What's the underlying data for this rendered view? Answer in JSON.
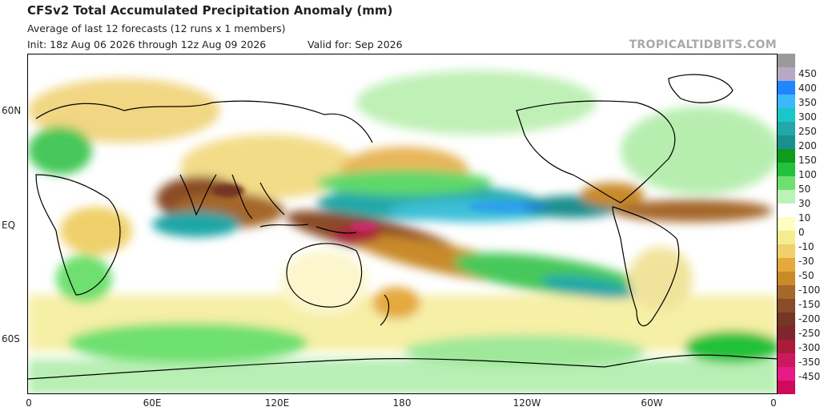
{
  "header": {
    "title": "CFSv2 Total Accumulated Precipitation Anomaly (mm)",
    "subtitle": "Average of last 12 forecasts (12 runs x 1 members)",
    "init": "Init: 18z Aug 06 2026 through 12z Aug 09 2026",
    "valid": "Valid for: Sep 2026",
    "brand": "TROPICALTIDBITS.COM"
  },
  "map": {
    "lat_labels": [
      "60N",
      "EQ",
      "60S"
    ],
    "lon_labels": [
      "0",
      "60E",
      "120E",
      "180",
      "120W",
      "60W",
      "0"
    ]
  },
  "colorbar": {
    "colors": [
      "#9a9a9a",
      "#b8a8c6",
      "#1f86ff",
      "#3cb8ff",
      "#18c8c8",
      "#22a8a8",
      "#1a8f8f",
      "#0f9a20",
      "#24c13b",
      "#6ee06f",
      "#baf2b8",
      "#ffffff",
      "#fffdc0",
      "#f4ec8e",
      "#f0d06a",
      "#e5a93c",
      "#c98a2a",
      "#a5672a",
      "#8a4b28",
      "#753624",
      "#80252b",
      "#a81d3a",
      "#cc1860",
      "#e81a88",
      "#d00a5a"
    ],
    "labels": [
      "450",
      "400",
      "350",
      "300",
      "250",
      "200",
      "150",
      "100",
      "50",
      "30",
      "10",
      "0",
      "-10",
      "-30",
      "-50",
      "-100",
      "-150",
      "-200",
      "-250",
      "-300",
      "-350",
      "-450"
    ]
  }
}
